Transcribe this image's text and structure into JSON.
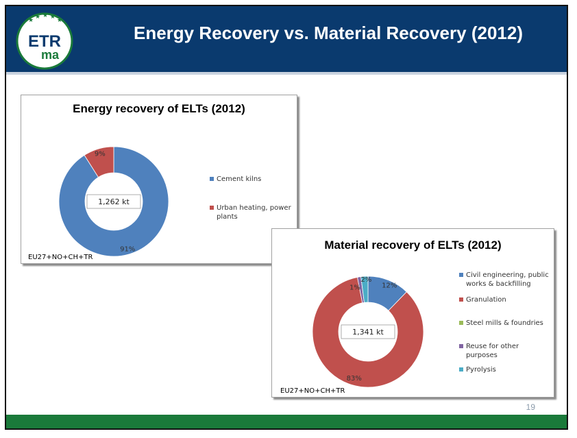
{
  "slide": {
    "title": "Energy Recovery vs. Material Recovery (2012)",
    "page_number": "19",
    "logo": {
      "text_top": "ETR",
      "text_bottom": "ma"
    }
  },
  "colors": {
    "header": "#0a3a6e",
    "footer": "#1a7a3a",
    "blue": "#4f81bd",
    "red": "#c0504d",
    "green": "#9bbb59",
    "purple": "#8064a2",
    "cyan": "#4bacc6"
  },
  "chart_data": [
    {
      "type": "pie",
      "subtype": "donut",
      "title": "Energy recovery of ELTs (2012)",
      "center_label": "1,262 kt",
      "region_note": "EU27+NO+CH+TR",
      "legend_position": "right",
      "slices": [
        {
          "name": "Cement kilns",
          "value": 91,
          "label": "91%",
          "color": "#4f81bd"
        },
        {
          "name": "Urban heating, power plants",
          "value": 9,
          "label": "9%",
          "color": "#c0504d"
        }
      ]
    },
    {
      "type": "pie",
      "subtype": "donut",
      "title": "Material recovery of ELTs (2012)",
      "center_label": "1,341 kt",
      "region_note": "EU27+NO+CH+TR",
      "legend_position": "right",
      "slices": [
        {
          "name": "Civil engineering, public works & backfilling",
          "value": 12,
          "label": "12%",
          "color": "#4f81bd"
        },
        {
          "name": "Granulation",
          "value": 83,
          "label": "83%",
          "color": "#c0504d"
        },
        {
          "name": "Steel mills & foundries",
          "value": 0,
          "label": "",
          "color": "#9bbb59"
        },
        {
          "name": "Reuse for other purposes",
          "value": 1,
          "label": "1%",
          "color": "#8064a2"
        },
        {
          "name": "Pyrolysis",
          "value": 2,
          "label": "2%",
          "color": "#4bacc6"
        }
      ]
    }
  ]
}
